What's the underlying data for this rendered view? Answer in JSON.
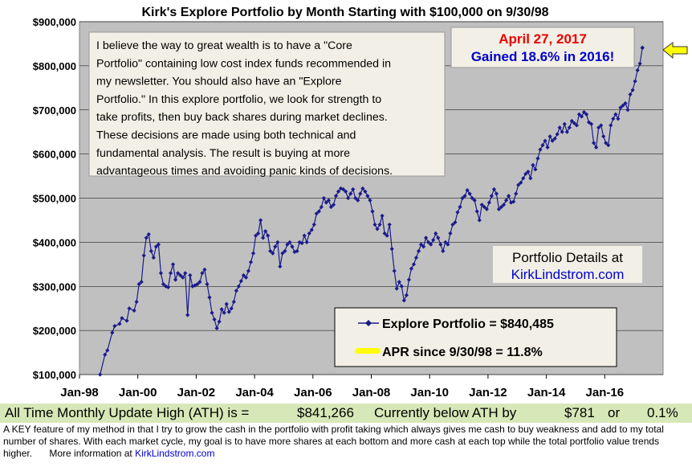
{
  "chart_data": {
    "type": "line",
    "title": "Kirk's Explore Portfolio by Month Starting with $100,000 on 9/30/98",
    "y_ticks": [
      "$100,000",
      "$200,000",
      "$300,000",
      "$400,000",
      "$500,000",
      "$600,000",
      "$700,000",
      "$800,000",
      "$900,000"
    ],
    "y_tick_values": [
      100000,
      200000,
      300000,
      400000,
      500000,
      600000,
      700000,
      800000,
      900000
    ],
    "ylim": [
      100000,
      900000
    ],
    "x_ticks": [
      "Jan-98",
      "Jan-00",
      "Jan-02",
      "Jan-04",
      "Jan-06",
      "Jan-08",
      "Jan-10",
      "Jan-12",
      "Jan-14",
      "Jan-16"
    ],
    "x_tick_years": [
      1998,
      2000,
      2002,
      2004,
      2006,
      2008,
      2010,
      2012,
      2014,
      2016
    ],
    "xlim_years": [
      1998,
      2018
    ],
    "grid": true,
    "series": [
      {
        "name": "Explore Portfolio  =  $840,485",
        "color": "#1a1a8c",
        "points": [
          [
            "1998-09",
            100000
          ],
          [
            "1998-11",
            145000
          ],
          [
            "1998-12",
            155000
          ],
          [
            "1999-02",
            195000
          ],
          [
            "1999-03",
            210000
          ],
          [
            "1999-05",
            215000
          ],
          [
            "1999-06",
            228000
          ],
          [
            "1999-08",
            222000
          ],
          [
            "1999-09",
            250000
          ],
          [
            "1999-11",
            245000
          ],
          [
            "1999-12",
            265000
          ],
          [
            "2000-01",
            305000
          ],
          [
            "2000-02",
            310000
          ],
          [
            "2000-03",
            370000
          ],
          [
            "2000-04",
            410000
          ],
          [
            "2000-05",
            418000
          ],
          [
            "2000-06",
            380000
          ],
          [
            "2000-07",
            365000
          ],
          [
            "2000-08",
            390000
          ],
          [
            "2000-09",
            395000
          ],
          [
            "2000-10",
            330000
          ],
          [
            "2000-11",
            305000
          ],
          [
            "2000-12",
            300000
          ],
          [
            "2001-01",
            298000
          ],
          [
            "2001-02",
            330000
          ],
          [
            "2001-03",
            350000
          ],
          [
            "2001-04",
            315000
          ],
          [
            "2001-05",
            330000
          ],
          [
            "2001-06",
            325000
          ],
          [
            "2001-07",
            320000
          ],
          [
            "2001-08",
            330000
          ],
          [
            "2001-09",
            235000
          ],
          [
            "2001-10",
            325000
          ],
          [
            "2001-11",
            300000
          ],
          [
            "2001-12",
            302000
          ],
          [
            "2002-01",
            305000
          ],
          [
            "2002-02",
            310000
          ],
          [
            "2002-03",
            330000
          ],
          [
            "2002-04",
            338000
          ],
          [
            "2002-05",
            305000
          ],
          [
            "2002-06",
            275000
          ],
          [
            "2002-07",
            240000
          ],
          [
            "2002-08",
            225000
          ],
          [
            "2002-09",
            205000
          ],
          [
            "2002-10",
            220000
          ],
          [
            "2002-11",
            248000
          ],
          [
            "2002-12",
            240000
          ],
          [
            "2003-01",
            260000
          ],
          [
            "2003-02",
            242000
          ],
          [
            "2003-03",
            250000
          ],
          [
            "2003-04",
            265000
          ],
          [
            "2003-05",
            290000
          ],
          [
            "2003-06",
            300000
          ],
          [
            "2003-07",
            312000
          ],
          [
            "2003-08",
            325000
          ],
          [
            "2003-09",
            320000
          ],
          [
            "2003-10",
            335000
          ],
          [
            "2003-11",
            355000
          ],
          [
            "2003-12",
            375000
          ],
          [
            "2004-01",
            415000
          ],
          [
            "2004-02",
            420000
          ],
          [
            "2004-03",
            450000
          ],
          [
            "2004-04",
            410000
          ],
          [
            "2004-05",
            425000
          ],
          [
            "2004-06",
            415000
          ],
          [
            "2004-07",
            380000
          ],
          [
            "2004-08",
            375000
          ],
          [
            "2004-09",
            390000
          ],
          [
            "2004-10",
            400000
          ],
          [
            "2004-11",
            345000
          ],
          [
            "2004-12",
            375000
          ],
          [
            "2005-01",
            380000
          ],
          [
            "2005-02",
            395000
          ],
          [
            "2005-03",
            400000
          ],
          [
            "2005-04",
            390000
          ],
          [
            "2005-05",
            378000
          ],
          [
            "2005-06",
            380000
          ],
          [
            "2005-07",
            400000
          ],
          [
            "2005-08",
            398000
          ],
          [
            "2005-09",
            415000
          ],
          [
            "2005-10",
            400000
          ],
          [
            "2005-11",
            420000
          ],
          [
            "2005-12",
            428000
          ],
          [
            "2006-01",
            440000
          ],
          [
            "2006-02",
            465000
          ],
          [
            "2006-03",
            470000
          ],
          [
            "2006-04",
            480000
          ],
          [
            "2006-05",
            500000
          ],
          [
            "2006-06",
            490000
          ],
          [
            "2006-07",
            495000
          ],
          [
            "2006-08",
            480000
          ],
          [
            "2006-09",
            485000
          ],
          [
            "2006-10",
            505000
          ],
          [
            "2006-11",
            515000
          ],
          [
            "2006-12",
            522000
          ],
          [
            "2007-01",
            520000
          ],
          [
            "2007-02",
            515000
          ],
          [
            "2007-03",
            500000
          ],
          [
            "2007-04",
            510000
          ],
          [
            "2007-05",
            520000
          ],
          [
            "2007-06",
            500000
          ],
          [
            "2007-07",
            495000
          ],
          [
            "2007-08",
            510000
          ],
          [
            "2007-09",
            522000
          ],
          [
            "2007-10",
            515000
          ],
          [
            "2007-11",
            505000
          ],
          [
            "2007-12",
            495000
          ],
          [
            "2008-01",
            470000
          ],
          [
            "2008-02",
            440000
          ],
          [
            "2008-03",
            430000
          ],
          [
            "2008-04",
            440000
          ],
          [
            "2008-05",
            460000
          ],
          [
            "2008-06",
            420000
          ],
          [
            "2008-07",
            415000
          ],
          [
            "2008-08",
            440000
          ],
          [
            "2008-09",
            385000
          ],
          [
            "2008-10",
            335000
          ],
          [
            "2008-11",
            295000
          ],
          [
            "2008-12",
            310000
          ],
          [
            "2009-01",
            300000
          ],
          [
            "2009-02",
            268000
          ],
          [
            "2009-03",
            280000
          ],
          [
            "2009-04",
            315000
          ],
          [
            "2009-05",
            340000
          ],
          [
            "2009-06",
            350000
          ],
          [
            "2009-07",
            365000
          ],
          [
            "2009-08",
            380000
          ],
          [
            "2009-09",
            395000
          ],
          [
            "2009-10",
            390000
          ],
          [
            "2009-11",
            410000
          ],
          [
            "2009-12",
            400000
          ],
          [
            "2010-01",
            395000
          ],
          [
            "2010-02",
            405000
          ],
          [
            "2010-03",
            420000
          ],
          [
            "2010-04",
            410000
          ],
          [
            "2010-05",
            395000
          ],
          [
            "2010-06",
            380000
          ],
          [
            "2010-07",
            400000
          ],
          [
            "2010-08",
            395000
          ],
          [
            "2010-09",
            420000
          ],
          [
            "2010-10",
            440000
          ],
          [
            "2010-11",
            445000
          ],
          [
            "2010-12",
            468000
          ],
          [
            "2011-01",
            480000
          ],
          [
            "2011-02",
            500000
          ],
          [
            "2011-03",
            505000
          ],
          [
            "2011-04",
            518000
          ],
          [
            "2011-05",
            510000
          ],
          [
            "2011-06",
            500000
          ],
          [
            "2011-07",
            495000
          ],
          [
            "2011-08",
            470000
          ],
          [
            "2011-09",
            450000
          ],
          [
            "2011-10",
            485000
          ],
          [
            "2011-11",
            480000
          ],
          [
            "2011-12",
            475000
          ],
          [
            "2012-01",
            490000
          ],
          [
            "2012-02",
            505000
          ],
          [
            "2012-03",
            520000
          ],
          [
            "2012-04",
            510000
          ],
          [
            "2012-05",
            475000
          ],
          [
            "2012-06",
            480000
          ],
          [
            "2012-07",
            485000
          ],
          [
            "2012-08",
            495000
          ],
          [
            "2012-09",
            505000
          ],
          [
            "2012-10",
            490000
          ],
          [
            "2012-11",
            492000
          ],
          [
            "2012-12",
            510000
          ],
          [
            "2013-01",
            530000
          ],
          [
            "2013-02",
            535000
          ],
          [
            "2013-03",
            545000
          ],
          [
            "2013-04",
            555000
          ],
          [
            "2013-05",
            560000
          ],
          [
            "2013-06",
            545000
          ],
          [
            "2013-07",
            575000
          ],
          [
            "2013-08",
            565000
          ],
          [
            "2013-09",
            590000
          ],
          [
            "2013-10",
            610000
          ],
          [
            "2013-11",
            620000
          ],
          [
            "2013-12",
            630000
          ],
          [
            "2014-01",
            615000
          ],
          [
            "2014-02",
            640000
          ],
          [
            "2014-03",
            630000
          ],
          [
            "2014-04",
            635000
          ],
          [
            "2014-05",
            645000
          ],
          [
            "2014-06",
            660000
          ],
          [
            "2014-07",
            650000
          ],
          [
            "2014-08",
            668000
          ],
          [
            "2014-09",
            650000
          ],
          [
            "2014-10",
            660000
          ],
          [
            "2014-11",
            675000
          ],
          [
            "2014-12",
            670000
          ],
          [
            "2015-01",
            665000
          ],
          [
            "2015-02",
            690000
          ],
          [
            "2015-03",
            685000
          ],
          [
            "2015-04",
            695000
          ],
          [
            "2015-05",
            690000
          ],
          [
            "2015-06",
            672000
          ],
          [
            "2015-07",
            668000
          ],
          [
            "2015-08",
            625000
          ],
          [
            "2015-09",
            615000
          ],
          [
            "2015-10",
            660000
          ],
          [
            "2015-11",
            665000
          ],
          [
            "2015-12",
            640000
          ],
          [
            "2016-01",
            625000
          ],
          [
            "2016-02",
            620000
          ],
          [
            "2016-03",
            665000
          ],
          [
            "2016-04",
            680000
          ],
          [
            "2016-05",
            690000
          ],
          [
            "2016-06",
            680000
          ],
          [
            "2016-07",
            705000
          ],
          [
            "2016-08",
            710000
          ],
          [
            "2016-09",
            715000
          ],
          [
            "2016-10",
            700000
          ],
          [
            "2016-11",
            735000
          ],
          [
            "2016-12",
            745000
          ],
          [
            "2017-01",
            765000
          ],
          [
            "2017-02",
            790000
          ],
          [
            "2017-03",
            805000
          ],
          [
            "2017-04",
            841266
          ],
          [
            "2017-04",
            840485
          ]
        ]
      }
    ],
    "legend": [
      {
        "label": "Explore Portfolio  =  $840,485",
        "marker": "diamond-line",
        "color": "#1a1a8c"
      },
      {
        "label": "APR since 9/30/98  =  11.8%",
        "marker": "yellow-bar",
        "color": "#ffff00"
      }
    ],
    "annotation_text": [
      "I believe the way to great wealth is to have a \"Core",
      "Portfolio\" containing low cost index funds recommended in",
      "my newsletter.  You  should also have an \"Explore",
      "Portfolio.\" In this  explore portfolio, we look for strength to",
      "take profits, then buy back shares during market declines.",
      "These decisions are made using both technical and",
      "fundamental analysis. The result is buying at more",
      "advantageous times and avoiding panic kinds of decisions."
    ],
    "date_label": "April 27, 2017",
    "gain_label": "Gained 18.6% in 2016!",
    "details_label": "Portfolio Details at",
    "details_link": "KirkLindstrom.com"
  },
  "ath_bar": {
    "label": "All Time Monthly Update High (ATH) is =",
    "ath_value": "$841,266",
    "below_label": "Currently below ATH by",
    "below_value": "$781",
    "or_label": "or",
    "below_pct": "0.1%"
  },
  "footnote": {
    "text": "A KEY feature of my method in that I try to grow the cash in the portfolio with profit taking which always gives me cash to buy weakness and add to my total number of shares.  With each market cycle, my goal is to have more shares at each bottom and more cash at each top while the total portfolio value trends higher.",
    "more_label": "More information at",
    "link": "KirkLindstrom.com"
  },
  "colors": {
    "background": "#ffffff",
    "plot_area": "#c0c0c0",
    "series": "#1a1a8c",
    "ath_bar": "#d7e8b8",
    "date_red": "#ee0000",
    "gain_blue": "#0000cc",
    "arrow_yellow": "#ffff00"
  }
}
